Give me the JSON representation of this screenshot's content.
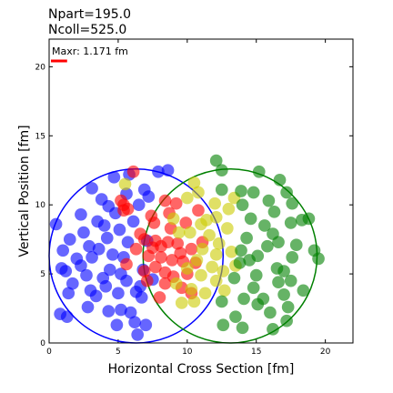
{
  "chart_data": {
    "type": "scatter",
    "title_lines": [
      "Npart=195.0",
      "Ncoll=525.0"
    ],
    "xlabel": "Horizontal Cross Section [fm]",
    "ylabel": "Vertical Position [fm]",
    "xlim": [
      0,
      22
    ],
    "ylim": [
      0,
      22
    ],
    "xticks": [
      0,
      5,
      10,
      15,
      20
    ],
    "yticks": [
      0,
      5,
      10,
      15,
      20
    ],
    "annotation": "Maxr: 1.171 fm",
    "scale_bar_length_fm": 1.171,
    "colors": {
      "nucleusA": "#0000ff",
      "nucleusB": "#008000",
      "participantA": "#ff0000",
      "participantB": "#cccc00",
      "scale_bar": "#ff0000"
    },
    "circles": [
      {
        "name": "nucleusA-outline",
        "cx": 6.3,
        "cy": 6.3,
        "r": 6.3,
        "color": "#0000ff"
      },
      {
        "name": "nucleusB-outline",
        "cx": 13.1,
        "cy": 6.3,
        "r": 6.3,
        "color": "#008000"
      }
    ],
    "series": [
      {
        "name": "Spectators A",
        "color": "#0000ff",
        "points": [
          [
            0.5,
            8.6
          ],
          [
            1.2,
            5.2
          ],
          [
            1.5,
            7.5
          ],
          [
            2.3,
            5.6
          ],
          [
            2.9,
            7.0
          ],
          [
            1.7,
            4.3
          ],
          [
            3.4,
            3.4
          ],
          [
            2.3,
            9.3
          ],
          [
            3.8,
            10.4
          ],
          [
            3.1,
            11.2
          ],
          [
            4.7,
            12.0
          ],
          [
            4.3,
            9.9
          ],
          [
            5.8,
            12.2
          ],
          [
            5.1,
            8.2
          ],
          [
            4.6,
            6.4
          ],
          [
            4.1,
            4.1
          ],
          [
            5.2,
            2.4
          ],
          [
            4.9,
            1.3
          ],
          [
            6.4,
            0.6
          ],
          [
            5.9,
            2.2
          ],
          [
            6.7,
            3.3
          ],
          [
            5.6,
            4.5
          ],
          [
            3.1,
            6.2
          ],
          [
            2.0,
            6.1
          ],
          [
            1.0,
            6.7
          ],
          [
            0.8,
            2.1
          ],
          [
            2.8,
            2.6
          ],
          [
            7.0,
            1.3
          ],
          [
            7.9,
            12.4
          ],
          [
            8.6,
            12.5
          ],
          [
            7.2,
            10.6
          ],
          [
            6.8,
            5.3
          ],
          [
            5.4,
            6.2
          ],
          [
            4.2,
            7.6
          ],
          [
            3.5,
            8.8
          ],
          [
            6.5,
            10.0
          ],
          [
            6.1,
            8.8
          ],
          [
            7.1,
            7.4
          ],
          [
            4.3,
            2.3
          ],
          [
            1.4,
            3.6
          ],
          [
            5.2,
            5.0
          ],
          [
            4.4,
            5.3
          ],
          [
            2.7,
            4.9
          ],
          [
            6.6,
            4.1
          ],
          [
            3.9,
            4.7
          ],
          [
            1.3,
            1.9
          ],
          [
            5.7,
            7.3
          ],
          [
            3.0,
            3.8
          ],
          [
            6.2,
            1.5
          ],
          [
            4.8,
            9.4
          ],
          [
            5.6,
            10.8
          ],
          [
            6.9,
            11.1
          ],
          [
            3.6,
            6.8
          ],
          [
            2.5,
            8.0
          ],
          [
            0.9,
            5.4
          ],
          [
            4.0,
            8.5
          ],
          [
            6.3,
            3.7
          ],
          [
            7.5,
            4.6
          ],
          [
            5.0,
            3.6
          ]
        ]
      },
      {
        "name": "Participants A",
        "color": "#ff0000",
        "points": [
          [
            5.2,
            10.3
          ],
          [
            5.4,
            10.0
          ],
          [
            5.4,
            9.6
          ],
          [
            5.7,
            9.7
          ],
          [
            8.4,
            10.3
          ],
          [
            9.2,
            10.1
          ],
          [
            10.8,
            9.6
          ],
          [
            8.7,
            9.4
          ],
          [
            7.6,
            8.7
          ],
          [
            9.9,
            8.7
          ],
          [
            6.6,
            7.9
          ],
          [
            6.9,
            7.5
          ],
          [
            7.7,
            7.4
          ],
          [
            8.6,
            7.3
          ],
          [
            8.1,
            7.0
          ],
          [
            9.3,
            7.2
          ],
          [
            10.3,
            6.8
          ],
          [
            6.3,
            6.8
          ],
          [
            7.2,
            6.3
          ],
          [
            8.1,
            6.2
          ],
          [
            8.9,
            6.0
          ],
          [
            9.7,
            5.9
          ],
          [
            10.6,
            5.8
          ],
          [
            7.7,
            5.5
          ],
          [
            8.4,
            5.1
          ],
          [
            9.0,
            4.8
          ],
          [
            6.9,
            5.2
          ],
          [
            7.1,
            4.5
          ],
          [
            8.4,
            4.3
          ],
          [
            9.6,
            4.0
          ],
          [
            10.3,
            3.6
          ],
          [
            8.0,
            3.3
          ],
          [
            6.1,
            12.4
          ],
          [
            5.6,
            5.7
          ],
          [
            11.1,
            7.3
          ],
          [
            9.5,
            6.5
          ],
          [
            7.5,
            6.9
          ],
          [
            8.8,
            8.3
          ],
          [
            10.0,
            5.0
          ],
          [
            7.4,
            9.2
          ]
        ]
      },
      {
        "name": "Participants B",
        "color": "#cccc00",
        "points": [
          [
            5.5,
            11.5
          ],
          [
            10.5,
            11.6
          ],
          [
            10.8,
            10.9
          ],
          [
            12.0,
            10.1
          ],
          [
            13.0,
            9.7
          ],
          [
            12.1,
            9.1
          ],
          [
            11.0,
            8.6
          ],
          [
            12.9,
            8.3
          ],
          [
            10.2,
            8.0
          ],
          [
            11.6,
            7.8
          ],
          [
            9.4,
            8.0
          ],
          [
            11.1,
            6.8
          ],
          [
            12.1,
            6.4
          ],
          [
            13.2,
            6.6
          ],
          [
            10.7,
            6.0
          ],
          [
            11.8,
            5.5
          ],
          [
            12.6,
            5.2
          ],
          [
            10.0,
            5.4
          ],
          [
            11.0,
            4.9
          ],
          [
            12.1,
            4.5
          ],
          [
            9.2,
            4.3
          ],
          [
            10.3,
            3.9
          ],
          [
            11.3,
            3.6
          ],
          [
            9.6,
            2.9
          ],
          [
            10.5,
            3.0
          ],
          [
            12.7,
            3.8
          ],
          [
            13.4,
            10.5
          ],
          [
            9.0,
            9.0
          ],
          [
            11.4,
            8.9
          ],
          [
            13.5,
            5.6
          ],
          [
            10.0,
            10.5
          ],
          [
            12.3,
            7.2
          ]
        ]
      },
      {
        "name": "Spectators B",
        "color": "#008000",
        "points": [
          [
            12.1,
            13.2
          ],
          [
            12.5,
            12.5
          ],
          [
            15.2,
            12.4
          ],
          [
            16.7,
            11.8
          ],
          [
            17.2,
            10.9
          ],
          [
            17.6,
            10.1
          ],
          [
            18.3,
            8.9
          ],
          [
            14.8,
            10.9
          ],
          [
            13.9,
            11.0
          ],
          [
            12.5,
            11.1
          ],
          [
            14.0,
            10.0
          ],
          [
            15.9,
            10.3
          ],
          [
            16.3,
            9.5
          ],
          [
            14.6,
            9.0
          ],
          [
            15.6,
            8.5
          ],
          [
            17.5,
            8.7
          ],
          [
            16.2,
            7.9
          ],
          [
            14.3,
            7.6
          ],
          [
            16.6,
            7.3
          ],
          [
            17.9,
            7.1
          ],
          [
            19.2,
            6.7
          ],
          [
            19.5,
            6.1
          ],
          [
            17.6,
            6.2
          ],
          [
            15.1,
            6.3
          ],
          [
            13.9,
            6.7
          ],
          [
            16.5,
            5.4
          ],
          [
            15.0,
            4.9
          ],
          [
            13.4,
            4.7
          ],
          [
            16.6,
            4.4
          ],
          [
            17.5,
            4.5
          ],
          [
            18.4,
            3.8
          ],
          [
            17.0,
            3.5
          ],
          [
            15.5,
            3.2
          ],
          [
            14.1,
            3.2
          ],
          [
            17.3,
            2.6
          ],
          [
            16.0,
            2.2
          ],
          [
            15.1,
            2.8
          ],
          [
            17.2,
            1.6
          ],
          [
            16.2,
            1.0
          ],
          [
            14.0,
            1.1
          ],
          [
            12.6,
            1.3
          ],
          [
            13.5,
            1.9
          ],
          [
            14.8,
            4.0
          ],
          [
            12.5,
            3.0
          ],
          [
            13.8,
            5.8
          ],
          [
            15.8,
            7.0
          ],
          [
            18.8,
            9.0
          ],
          [
            17.0,
            5.2
          ],
          [
            14.5,
            6.0
          ]
        ]
      }
    ]
  }
}
